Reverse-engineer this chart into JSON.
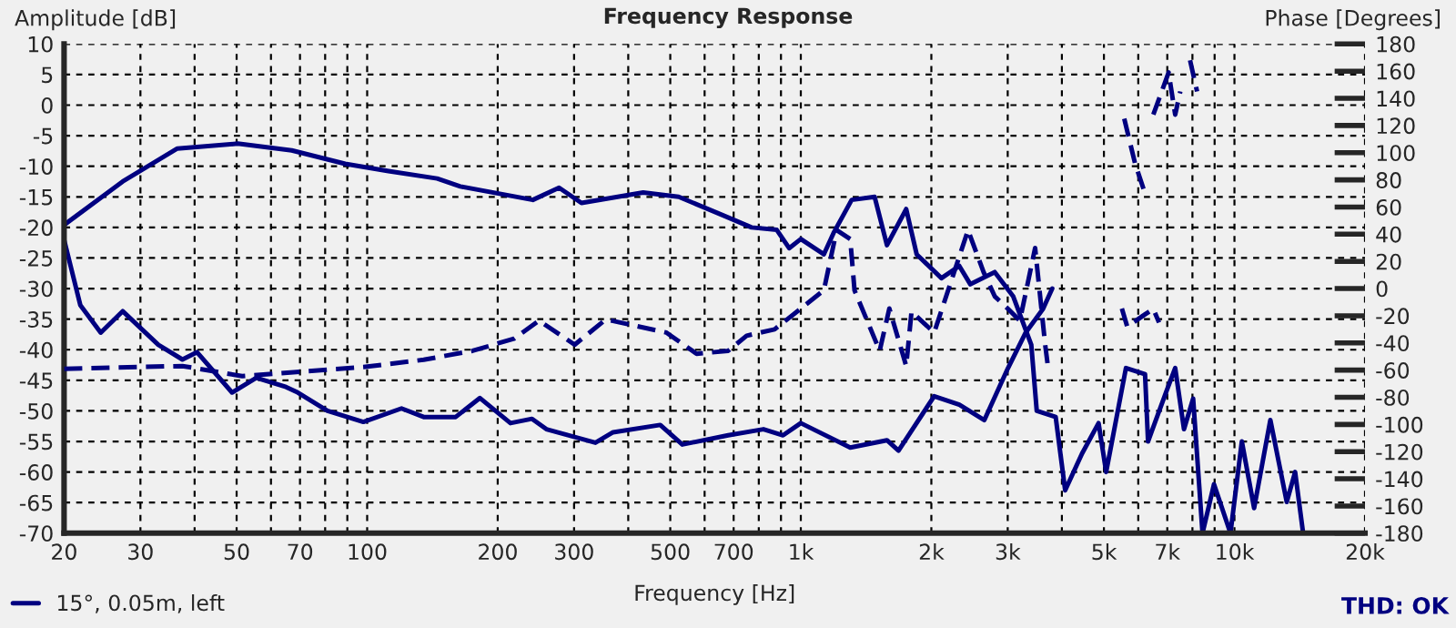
{
  "chart_data": {
    "type": "line",
    "title": "Frequency Response",
    "xlabel": "Frequency [Hz]",
    "ylabel": "Amplitude [dB]",
    "y2label": "Phase [Degrees]",
    "log": "x",
    "grid": true,
    "legend": "bottom left",
    "xlim": [
      20,
      20000
    ],
    "xticks": [
      20,
      30,
      {
        "value": 40,
        "label": null
      },
      50,
      {
        "value": 60,
        "label": null
      },
      70,
      {
        "value": 80,
        "label": null
      },
      {
        "value": 90,
        "label": null
      },
      100,
      200,
      300,
      {
        "value": 400,
        "label": null
      },
      500,
      {
        "value": 600,
        "label": null
      },
      700,
      {
        "value": 800,
        "label": null
      },
      {
        "value": 900,
        "label": null
      },
      {
        "value": 1000,
        "label": "1k"
      },
      {
        "value": 2000,
        "label": "2k"
      },
      {
        "value": 3000,
        "label": "3k"
      },
      {
        "value": 4000,
        "label": null
      },
      {
        "value": 5000,
        "label": "5k"
      },
      {
        "value": 6000,
        "label": null
      },
      {
        "value": 7000,
        "label": "7k"
      },
      {
        "value": 8000,
        "label": null
      },
      {
        "value": 9000,
        "label": null
      },
      {
        "value": 10000,
        "label": "10k"
      },
      {
        "value": 20000,
        "label": "20k"
      }
    ],
    "ylim": [
      -70,
      10
    ],
    "yticks": [
      -70,
      -65,
      -60,
      -55,
      -50,
      -45,
      -40,
      -35,
      -30,
      -25,
      -20,
      -15,
      -10,
      -5,
      0,
      5,
      10
    ],
    "y2lim": [
      -180,
      180
    ],
    "y2ticks": [
      -180,
      -160,
      -140,
      -120,
      -100,
      -80,
      -60,
      -40,
      -20,
      0,
      20,
      40,
      60,
      80,
      100,
      120,
      140,
      160,
      180
    ],
    "annotations": [
      "THD: OK"
    ],
    "series": [
      {
        "name": "15°, 0.05m, left",
        "color": "#000080",
        "line_style": "solid",
        "x": [
          20,
          27.3,
          36.5,
          50.3,
          67,
          89,
          112,
          145,
          164,
          241,
          277,
          312,
          433,
          523,
          660,
          770,
          880,
          940,
          1000,
          1130,
          1190,
          1310,
          1480,
          1580,
          1750,
          1850,
          2110,
          2320,
          2460,
          2800,
          3090,
          3400,
          3500,
          3870,
          4070,
          4450,
          4860,
          5060,
          5620,
          6220,
          6320,
          6950,
          7300,
          7650,
          8030,
          8440,
          8970,
          9790,
          10400,
          11100,
          12100,
          13200,
          13800,
          14400
        ],
        "values": [
          -19.6,
          -12.5,
          -7.1,
          -6.3,
          -7.4,
          -9.6,
          -10.8,
          -12,
          -13.3,
          -15.5,
          -13.5,
          -16,
          -14.3,
          -15,
          -18,
          -20,
          -20.4,
          -23.4,
          -21.9,
          -24.4,
          -20.9,
          -15.5,
          -15,
          -22.9,
          -17,
          -24.4,
          -28.3,
          -26.3,
          -29.3,
          -27.3,
          -31.3,
          -39.2,
          -50,
          -51,
          -63,
          -57,
          -52,
          -60,
          -43,
          -44,
          -55,
          -47,
          -43,
          -53,
          -48,
          -70,
          -62,
          -70,
          -55,
          -65.9,
          -51.5,
          -64.9,
          -60,
          -70
        ]
      },
      {
        "color": "#000080",
        "line_style": "solid",
        "x": [
          20,
          21.8,
          24.3,
          27.3,
          33,
          37.5,
          40.5,
          48.8,
          55.5,
          65,
          69.2,
          81,
          98,
          120,
          135,
          160,
          182,
          214,
          240,
          259,
          336,
          369,
          474,
          533,
          680,
          820,
          910,
          1000,
          1300,
          1580,
          1680,
          2030,
          2320,
          2650,
          3000,
          3300,
          3620,
          3800
        ],
        "values": [
          -22,
          -32.7,
          -37.2,
          -33.7,
          -39.2,
          -41.6,
          -40.4,
          -47,
          -44.6,
          -46.1,
          -47,
          -50,
          -51.8,
          -49.6,
          -51,
          -51,
          -47.9,
          -52,
          -51.3,
          -53,
          -55.2,
          -53.5,
          -52.3,
          -55.5,
          -54,
          -53,
          -54,
          -52,
          -56,
          -54.8,
          -56.5,
          -47.6,
          -49,
          -51.5,
          -43.1,
          -37.2,
          -33.3,
          -30
        ]
      },
      {
        "color": "#000080",
        "line_style": "dashed",
        "axis": "y2",
        "x": [
          20,
          37.5,
          51.5,
          71,
          98,
          135,
          175,
          218,
          249,
          301,
          355,
          490,
          575,
          680,
          750,
          870,
          1000,
          1130,
          1210,
          1300,
          1330,
          1520,
          1600,
          1750,
          1800,
          2030,
          2430,
          2640,
          2800,
          3000,
          3200,
          3470,
          3660,
          3720,
          4500,
          5500,
          5660,
          6220,
          6500,
          6700
        ],
        "values": [
          -59,
          -57,
          -64.4,
          -61,
          -57.8,
          -52.4,
          -45.8,
          -36.9,
          -23.6,
          -41.3,
          -22.7,
          -32.4,
          -48,
          -45.8,
          -34.7,
          -30,
          -14.7,
          -1.3,
          43,
          36.4,
          -1.3,
          -45.8,
          -14.7,
          -57,
          -17,
          -32.4,
          43,
          12,
          -5.7,
          -14.7,
          -23.6,
          29.8,
          -41.3,
          -59,
          null,
          -14.7,
          -28,
          -19,
          -15,
          -25
        ]
      },
      {
        "color": "#000080",
        "line_style": "dashed",
        "axis": "y2",
        "x": [
          5570,
          5900,
          6220,
          6350,
          6500,
          7050,
          7300,
          7500,
          7700,
          7900,
          8200
        ],
        "values": [
          125,
          92,
          70,
          null,
          128,
          159,
          128,
          145,
          null,
          168,
          145
        ]
      }
    ]
  }
}
